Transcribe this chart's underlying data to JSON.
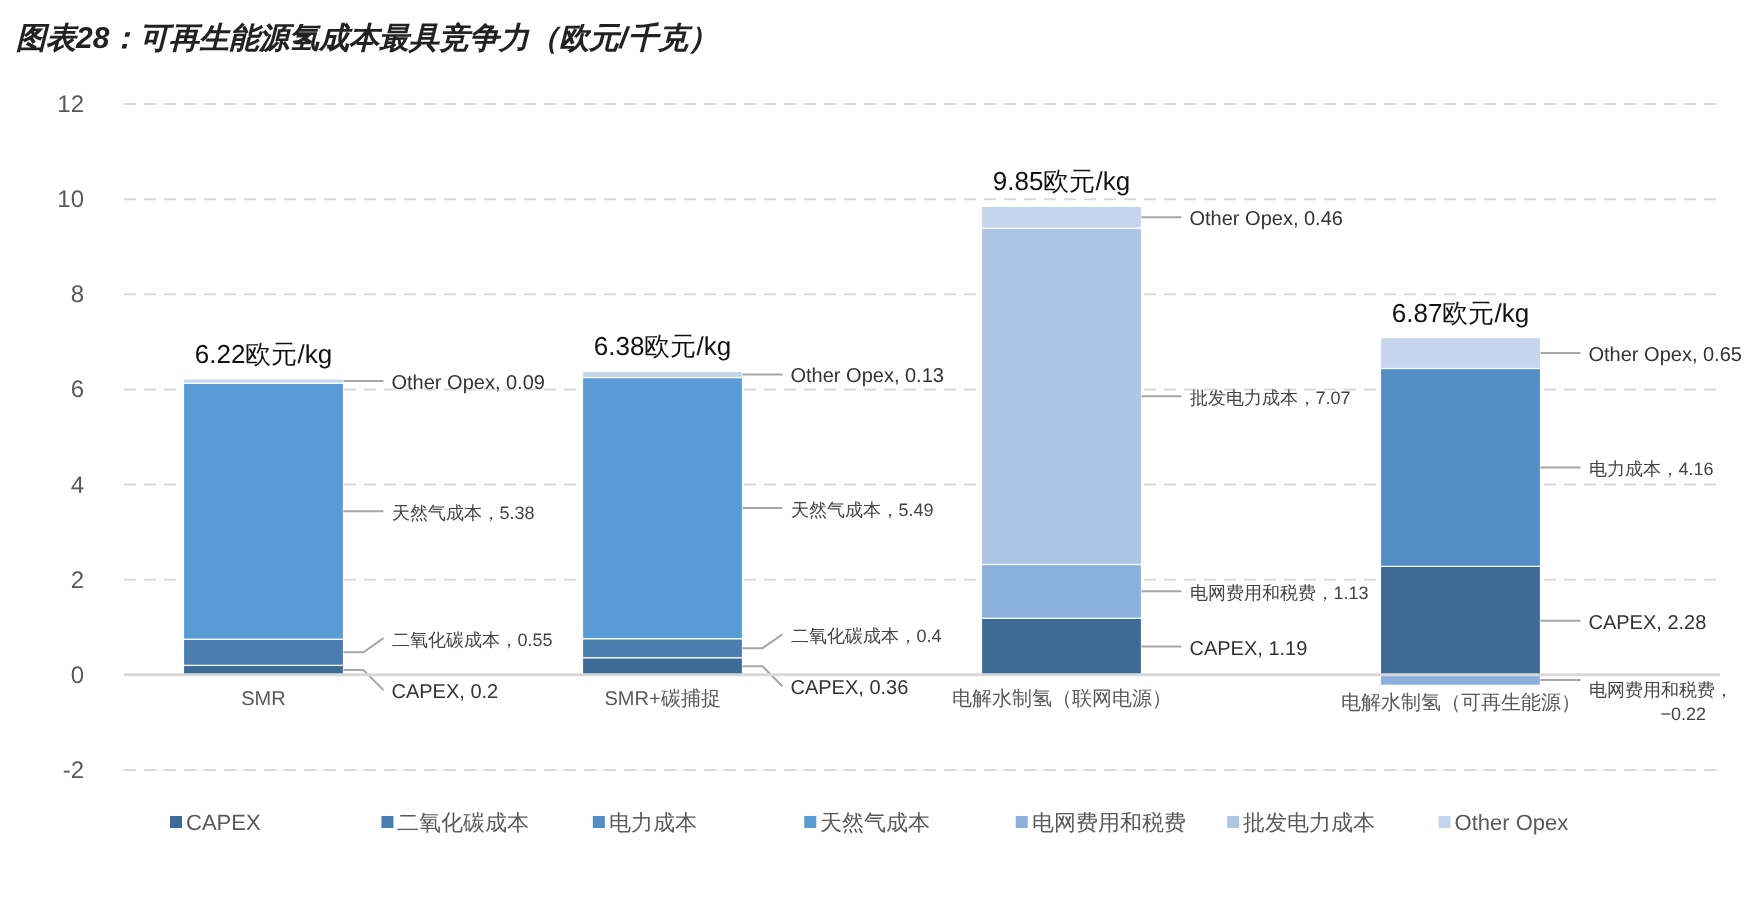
{
  "chart_data": {
    "type": "bar",
    "stacked": true,
    "title": "图表28：可再生能源氢成本最具竞争力（欧元/千克）",
    "categories": [
      "SMR",
      "SMR+碳捕捉",
      "电解水制氢（联网电源）",
      "电解水制氢（可再生能源）"
    ],
    "series": [
      {
        "name": "CAPEX",
        "color": "#3d6a96",
        "values": [
          0.2,
          0.36,
          1.19,
          2.28
        ],
        "value_labels": [
          "CAPEX, 0.2",
          "CAPEX, 0.36",
          "CAPEX, 1.19",
          "CAPEX, 2.28"
        ]
      },
      {
        "name": "二氧化碳成本",
        "color": "#4a7eb0",
        "values": [
          0.55,
          0.4,
          null,
          null
        ],
        "value_labels": [
          "二氧化碳成本，0.55",
          "二氧化碳成本，0.4",
          null,
          null
        ]
      },
      {
        "name": "电力成本",
        "color": "#528dc5",
        "values": [
          null,
          null,
          null,
          4.16
        ],
        "value_labels": [
          null,
          null,
          null,
          "电力成本，4.16"
        ]
      },
      {
        "name": "天然气成本",
        "color": "#5b9bd5",
        "values": [
          5.38,
          5.49,
          null,
          null
        ],
        "value_labels": [
          "天然气成本，5.38",
          "天然气成本，5.49",
          null,
          null
        ]
      },
      {
        "name": "电网费用和税费",
        "color": "#8bb0de",
        "values": [
          null,
          null,
          1.13,
          -0.22
        ],
        "value_labels": [
          null,
          null,
          "电网费用和税费，1.13",
          "电网费用和税费，−0.22"
        ]
      },
      {
        "name": "批发电力成本",
        "color": "#adc6e6",
        "values": [
          null,
          null,
          7.07,
          null
        ],
        "value_labels": [
          null,
          null,
          "批发电力成本，7.07",
          null
        ]
      },
      {
        "name": "Other Opex",
        "color": "#c5d6ec",
        "values": [
          0.09,
          0.13,
          0.46,
          0.65
        ],
        "value_labels": [
          "Other Opex, 0.09",
          "Other Opex, 0.13",
          "Other Opex, 0.46",
          "Other Opex, 0.65"
        ]
      }
    ],
    "totals": [
      "6.22欧元/kg",
      "6.38欧元/kg",
      "9.85欧元/kg",
      "6.87欧元/kg"
    ],
    "ylim": [
      -2,
      12
    ],
    "yticks": [
      -2,
      0,
      2,
      4,
      6,
      8,
      10,
      12
    ],
    "grid": "y",
    "legend": "bottom"
  }
}
